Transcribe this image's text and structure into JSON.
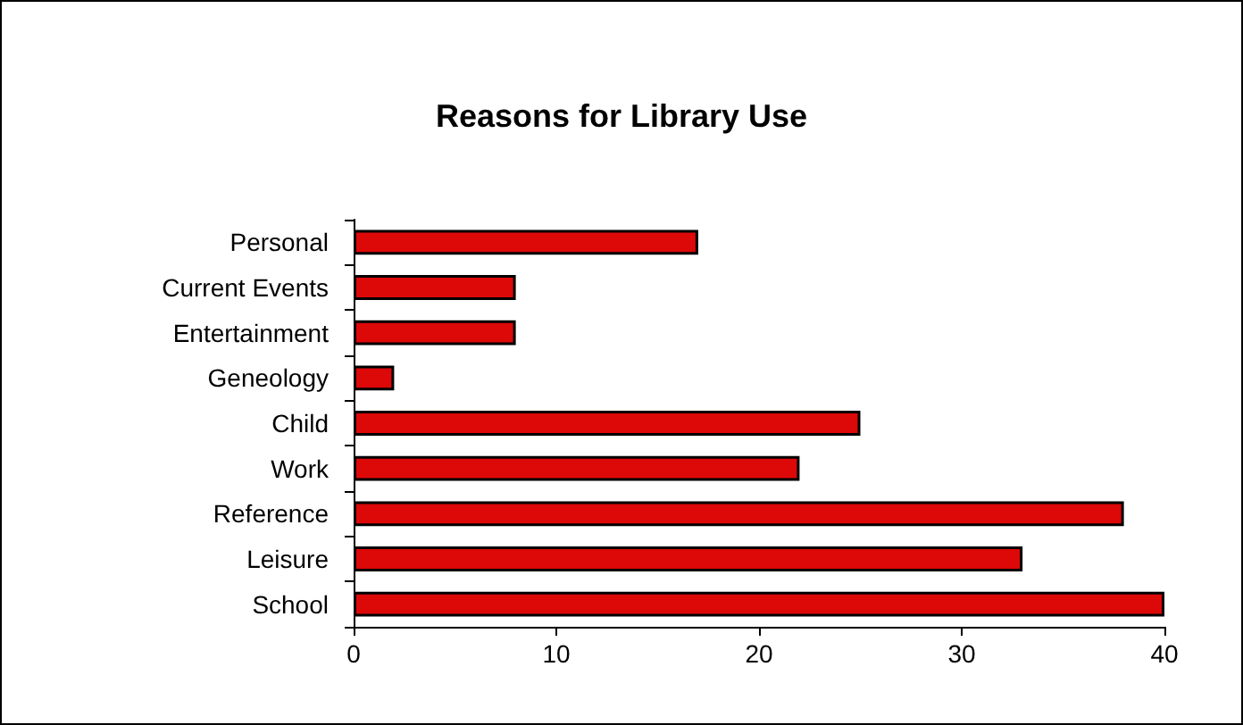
{
  "chart_data": {
    "type": "bar",
    "orientation": "horizontal",
    "title": "Reasons for Library Use",
    "categories": [
      "Personal",
      "Current Events",
      "Entertainment",
      "Geneology",
      "Child",
      "Work",
      "Reference",
      "Leisure",
      "School"
    ],
    "values": [
      17,
      8,
      8,
      2,
      25,
      22,
      38,
      33,
      40
    ],
    "color": "#dd0808",
    "xlim": [
      0,
      40
    ],
    "xticks": [
      0,
      10,
      20,
      30,
      40
    ]
  }
}
